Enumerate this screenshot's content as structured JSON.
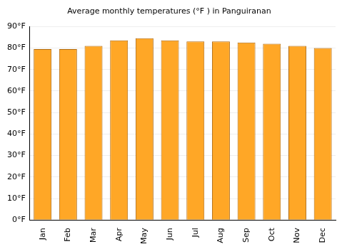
{
  "chart_data": {
    "type": "bar",
    "title": "Average monthly temperatures (°F ) in Panguiranan",
    "categories": [
      "Jan",
      "Feb",
      "Mar",
      "Apr",
      "May",
      "Jun",
      "Jul",
      "Aug",
      "Sep",
      "Oct",
      "Nov",
      "Dec"
    ],
    "values": [
      79.5,
      79.5,
      81,
      83.5,
      84.5,
      83.5,
      83,
      83,
      82.5,
      82,
      81,
      80
    ],
    "color": "#ffa726",
    "ylim": [
      0,
      90
    ],
    "yticks": [
      {
        "value": 0,
        "label": "0°F"
      },
      {
        "value": 10,
        "label": "10°F"
      },
      {
        "value": 20,
        "label": "20°F"
      },
      {
        "value": 30,
        "label": "30°F"
      },
      {
        "value": 40,
        "label": "40°F"
      },
      {
        "value": 50,
        "label": "50°F"
      },
      {
        "value": 60,
        "label": "60°F"
      },
      {
        "value": 70,
        "label": "70°F"
      },
      {
        "value": 80,
        "label": "80°F"
      },
      {
        "value": 90,
        "label": "90°F"
      }
    ],
    "grid": true
  }
}
